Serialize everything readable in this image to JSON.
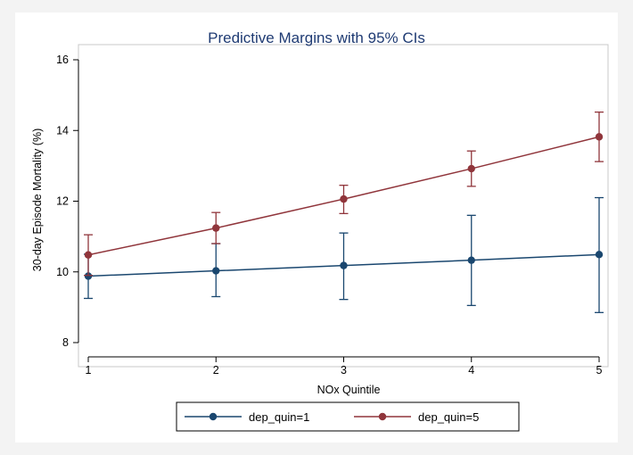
{
  "chart_data": {
    "type": "line",
    "title": "Predictive Margins with 95% CIs",
    "xlabel": "NOx Quintile",
    "ylabel": "30-day Episode Mortality (%)",
    "x": [
      1,
      2,
      3,
      4,
      5
    ],
    "xlim": [
      1,
      5
    ],
    "ylim": [
      8,
      16
    ],
    "xticks": [
      "1",
      "2",
      "3",
      "4",
      "5"
    ],
    "yticks": [
      "8",
      "10",
      "12",
      "14",
      "16"
    ],
    "ytick_values": [
      8,
      10,
      12,
      14,
      16
    ],
    "grid": false,
    "legend_position": "bottom",
    "series": [
      {
        "name": "dep_quin=1",
        "color": "#1a476f",
        "values": [
          9.88,
          10.03,
          10.18,
          10.33,
          10.49
        ],
        "ci_low": [
          9.25,
          9.3,
          9.22,
          9.05,
          8.85
        ],
        "ci_high": [
          10.5,
          10.8,
          11.1,
          11.6,
          12.1
        ]
      },
      {
        "name": "dep_quin=5",
        "color": "#90353b",
        "values": [
          10.48,
          11.24,
          12.06,
          12.92,
          13.82
        ],
        "ci_low": [
          9.9,
          10.8,
          11.65,
          12.42,
          13.12
        ],
        "ci_high": [
          11.05,
          11.68,
          12.45,
          13.42,
          14.52
        ]
      }
    ]
  }
}
